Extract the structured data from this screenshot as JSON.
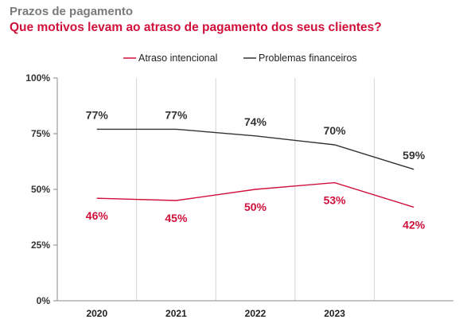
{
  "header": {
    "kicker": "Prazos de pagamento",
    "title": "Que motivos levam ao atraso de pagamento dos seus clientes?"
  },
  "colors": {
    "red": "#d0103a",
    "dark": "#333333",
    "axis": "#888888",
    "grid": "#d6d6d6"
  },
  "chart_data": {
    "type": "line",
    "title": "Que motivos levam ao atraso de pagamento dos seus clientes?",
    "x": [
      "2020",
      "2021",
      "2022",
      "2023",
      ""
    ],
    "ylim": [
      0,
      100
    ],
    "y_ticks": [
      "0%",
      "25%",
      "50%",
      "75%",
      "100%"
    ],
    "y_tick_values": [
      0,
      25,
      50,
      75,
      100
    ],
    "grid": "vertical",
    "legend": "top-center",
    "series": [
      {
        "name": "Atraso intencional",
        "color": "#d0103a",
        "values": [
          46,
          45,
          50,
          53,
          42
        ],
        "labels": [
          "46%",
          "45%",
          "50%",
          "53%",
          "42%"
        ],
        "label_position": "below"
      },
      {
        "name": "Problemas financeiros",
        "color": "#333333",
        "values": [
          77,
          77,
          74,
          70,
          59
        ],
        "labels": [
          "77%",
          "77%",
          "74%",
          "70%",
          "59%"
        ],
        "label_position": "above"
      }
    ]
  }
}
